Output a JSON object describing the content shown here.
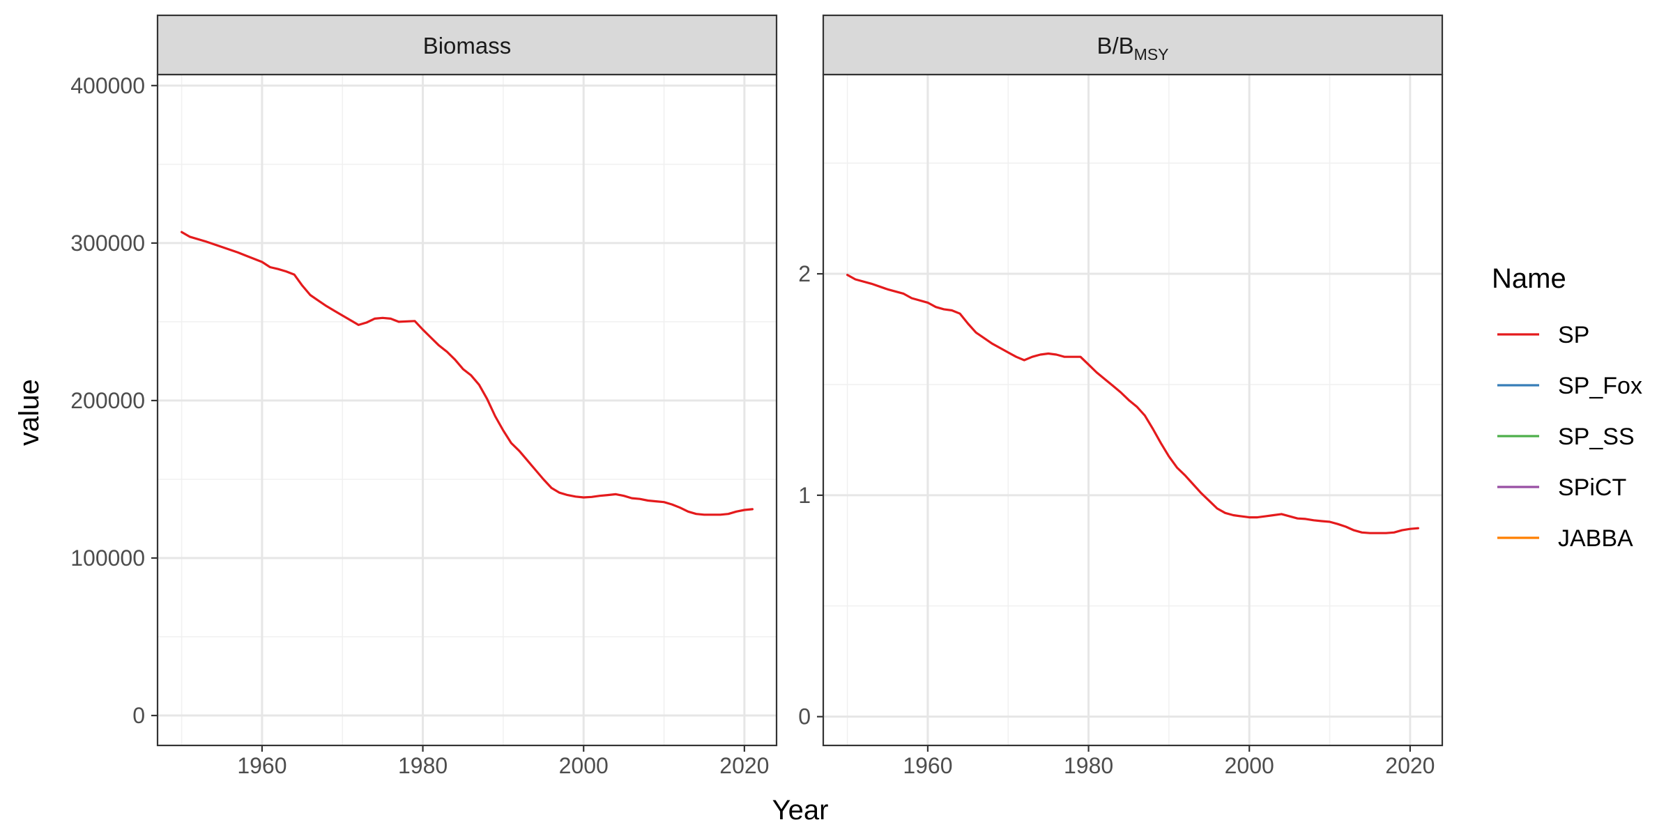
{
  "chart_data": {
    "type": "line",
    "xlabel": "Year",
    "ylabel": "value",
    "legend": {
      "title": "Name",
      "placement": "right",
      "entries": [
        {
          "name": "SP",
          "color": "#e41a1c"
        },
        {
          "name": "SP_Fox",
          "color": "#377eb8"
        },
        {
          "name": "SP_SS",
          "color": "#4daf4a"
        },
        {
          "name": "SPiCT",
          "color": "#984ea3"
        },
        {
          "name": "JABBA",
          "color": "#ff7f00"
        }
      ]
    },
    "panels": [
      {
        "title": "Biomass",
        "xlim": [
          1947,
          2024
        ],
        "ylim": [
          -19000,
          407000
        ],
        "xticks": [
          1960,
          1980,
          2000,
          2020
        ],
        "yticks": [
          0,
          100000,
          200000,
          300000,
          400000
        ],
        "minor_xticks": [
          1950,
          1970,
          1990,
          2010
        ],
        "minor_yticks": [
          50000,
          150000,
          250000,
          350000
        ],
        "series": [
          {
            "name": "SP",
            "color": "#e41a1c",
            "points": [
              [
                1950,
                307000
              ],
              [
                1951,
                304000
              ],
              [
                1953,
                301000
              ],
              [
                1955,
                297500
              ],
              [
                1957,
                294000
              ],
              [
                1958,
                292000
              ],
              [
                1960,
                288000
              ],
              [
                1961,
                284700
              ],
              [
                1962,
                283500
              ],
              [
                1963,
                282000
              ],
              [
                1964,
                280000
              ],
              [
                1965,
                273000
              ],
              [
                1966,
                267000
              ],
              [
                1967,
                263500
              ],
              [
                1968,
                260000
              ],
              [
                1969,
                257000
              ],
              [
                1970,
                254000
              ],
              [
                1971,
                251000
              ],
              [
                1972,
                248000
              ],
              [
                1973,
                249500
              ],
              [
                1974,
                252000
              ],
              [
                1975,
                252500
              ],
              [
                1976,
                252000
              ],
              [
                1977,
                250000
              ],
              [
                1979,
                250500
              ],
              [
                1980,
                245000
              ],
              [
                1981,
                240000
              ],
              [
                1982,
                235000
              ],
              [
                1983,
                231000
              ],
              [
                1984,
                226000
              ],
              [
                1985,
                220000
              ],
              [
                1986,
                216000
              ],
              [
                1987,
                210000
              ],
              [
                1988,
                201000
              ],
              [
                1989,
                190000
              ],
              [
                1990,
                181000
              ],
              [
                1991,
                173000
              ],
              [
                1992,
                168000
              ],
              [
                1993,
                162000
              ],
              [
                1994,
                156000
              ],
              [
                1995,
                150000
              ],
              [
                1996,
                144500
              ],
              [
                1997,
                141500
              ],
              [
                1998,
                140000
              ],
              [
                1999,
                139000
              ],
              [
                2000,
                138500
              ],
              [
                2001,
                138800
              ],
              [
                2002,
                139500
              ],
              [
                2003,
                140000
              ],
              [
                2004,
                140500
              ],
              [
                2005,
                139500
              ],
              [
                2006,
                138000
              ],
              [
                2007,
                137500
              ],
              [
                2008,
                136500
              ],
              [
                2009,
                136000
              ],
              [
                2010,
                135500
              ],
              [
                2011,
                134000
              ],
              [
                2012,
                132000
              ],
              [
                2013,
                129500
              ],
              [
                2014,
                128000
              ],
              [
                2015,
                127500
              ],
              [
                2016,
                127500
              ],
              [
                2017,
                127500
              ],
              [
                2018,
                128000
              ],
              [
                2019,
                129500
              ],
              [
                2020,
                130500
              ],
              [
                2021,
                131000
              ]
            ]
          }
        ]
      },
      {
        "title": "B/B",
        "title_subscript": "MSY",
        "xlim": [
          1947,
          2024
        ],
        "ylim": [
          -0.13,
          2.9
        ],
        "xticks": [
          1960,
          1980,
          2000,
          2020
        ],
        "yticks": [
          0,
          1,
          2
        ],
        "minor_xticks": [
          1950,
          1970,
          1990,
          2010
        ],
        "minor_yticks": [
          0.5,
          1.5,
          2.5
        ],
        "series": [
          {
            "name": "SP",
            "color": "#e41a1c",
            "points": [
              [
                1950,
                1.995
              ],
              [
                1951,
                1.975
              ],
              [
                1953,
                1.955
              ],
              [
                1955,
                1.93
              ],
              [
                1957,
                1.91
              ],
              [
                1958,
                1.89
              ],
              [
                1960,
                1.87
              ],
              [
                1961,
                1.85
              ],
              [
                1962,
                1.84
              ],
              [
                1963,
                1.835
              ],
              [
                1964,
                1.82
              ],
              [
                1965,
                1.775
              ],
              [
                1966,
                1.735
              ],
              [
                1967,
                1.71
              ],
              [
                1968,
                1.685
              ],
              [
                1969,
                1.665
              ],
              [
                1970,
                1.645
              ],
              [
                1971,
                1.625
              ],
              [
                1972,
                1.61
              ],
              [
                1973,
                1.625
              ],
              [
                1974,
                1.635
              ],
              [
                1975,
                1.64
              ],
              [
                1976,
                1.635
              ],
              [
                1977,
                1.625
              ],
              [
                1979,
                1.625
              ],
              [
                1980,
                1.59
              ],
              [
                1981,
                1.555
              ],
              [
                1982,
                1.525
              ],
              [
                1983,
                1.495
              ],
              [
                1984,
                1.465
              ],
              [
                1985,
                1.43
              ],
              [
                1986,
                1.4
              ],
              [
                1987,
                1.36
              ],
              [
                1988,
                1.3
              ],
              [
                1989,
                1.235
              ],
              [
                1990,
                1.175
              ],
              [
                1991,
                1.125
              ],
              [
                1992,
                1.09
              ],
              [
                1993,
                1.05
              ],
              [
                1994,
                1.01
              ],
              [
                1995,
                0.975
              ],
              [
                1996,
                0.94
              ],
              [
                1997,
                0.92
              ],
              [
                1998,
                0.91
              ],
              [
                1999,
                0.905
              ],
              [
                2000,
                0.9
              ],
              [
                2001,
                0.9
              ],
              [
                2002,
                0.905
              ],
              [
                2003,
                0.91
              ],
              [
                2004,
                0.915
              ],
              [
                2005,
                0.905
              ],
              [
                2006,
                0.895
              ],
              [
                2007,
                0.893
              ],
              [
                2008,
                0.887
              ],
              [
                2009,
                0.883
              ],
              [
                2010,
                0.88
              ],
              [
                2011,
                0.87
              ],
              [
                2012,
                0.858
              ],
              [
                2013,
                0.842
              ],
              [
                2014,
                0.832
              ],
              [
                2015,
                0.829
              ],
              [
                2016,
                0.829
              ],
              [
                2017,
                0.829
              ],
              [
                2018,
                0.832
              ],
              [
                2019,
                0.842
              ],
              [
                2020,
                0.848
              ],
              [
                2021,
                0.851
              ]
            ]
          }
        ]
      }
    ]
  }
}
